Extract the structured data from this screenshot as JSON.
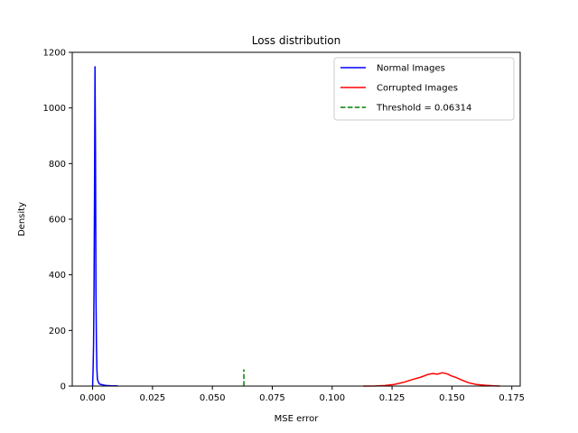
{
  "chart_data": {
    "type": "line",
    "title": "Loss distribution",
    "xlabel": "MSE error",
    "ylabel": "Density",
    "xlim": [
      -0.0085,
      0.1785
    ],
    "ylim": [
      0,
      1200
    ],
    "xticks": [
      "0.000",
      "0.025",
      "0.050",
      "0.075",
      "0.100",
      "0.125",
      "0.150",
      "0.175"
    ],
    "yticks": [
      "0",
      "200",
      "400",
      "600",
      "800",
      "1000",
      "1200"
    ],
    "xtick_values": [
      0,
      0.025,
      0.05,
      0.075,
      0.1,
      0.125,
      0.15,
      0.175
    ],
    "ytick_values": [
      0,
      200,
      400,
      600,
      800,
      1000,
      1200
    ],
    "grid": false,
    "legend_position": "top-right",
    "series": [
      {
        "name": "Normal Images",
        "color": "#0000ff",
        "style": "solid",
        "x": [
          0.0,
          0.0002,
          0.0004,
          0.0006,
          0.0008,
          0.001,
          0.0012,
          0.0014,
          0.0016,
          0.0018,
          0.002,
          0.0025,
          0.003,
          0.004,
          0.005,
          0.006,
          0.008,
          0.01,
          0.0105
        ],
        "y": [
          0,
          60,
          150,
          360,
          700,
          1148,
          850,
          330,
          150,
          60,
          25,
          12,
          7,
          5,
          3,
          2,
          1,
          1,
          0
        ]
      },
      {
        "name": "Corrupted Images",
        "color": "#ff0000",
        "style": "solid",
        "x": [
          0.113,
          0.118,
          0.122,
          0.126,
          0.13,
          0.134,
          0.137,
          0.14,
          0.142,
          0.144,
          0.146,
          0.148,
          0.15,
          0.152,
          0.154,
          0.157,
          0.16,
          0.164,
          0.168,
          0.17
        ],
        "y": [
          0,
          0.5,
          2,
          6,
          14,
          25,
          32,
          42,
          45,
          43,
          48,
          44,
          36,
          30,
          22,
          12,
          6,
          3,
          1,
          0
        ]
      },
      {
        "name": "Threshold = 0.06314",
        "color": "#008000",
        "style": "dashed",
        "x": [
          0.06314,
          0.06314
        ],
        "y": [
          0,
          60
        ]
      }
    ]
  }
}
